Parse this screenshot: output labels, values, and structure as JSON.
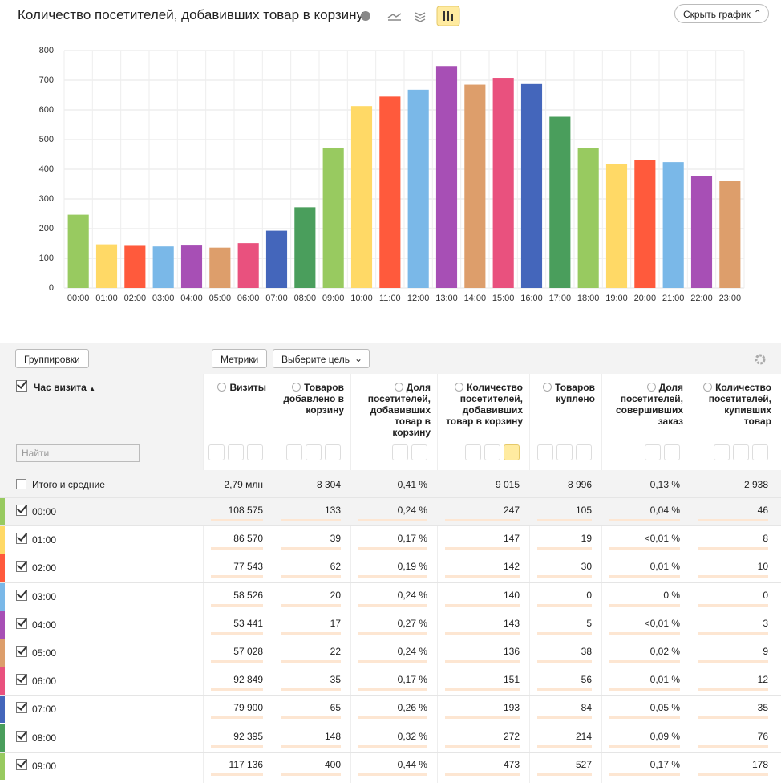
{
  "header": {
    "title": "Количество посетителей, добавивших товар в корзину",
    "hide_button": "Скрыть график"
  },
  "chart_data": {
    "type": "bar",
    "categories": [
      "00:00",
      "01:00",
      "02:00",
      "03:00",
      "04:00",
      "05:00",
      "06:00",
      "07:00",
      "08:00",
      "09:00",
      "10:00",
      "11:00",
      "12:00",
      "13:00",
      "14:00",
      "15:00",
      "16:00",
      "17:00",
      "18:00",
      "19:00",
      "20:00",
      "21:00",
      "22:00",
      "23:00"
    ],
    "values": [
      247,
      147,
      142,
      140,
      143,
      136,
      151,
      193,
      272,
      473,
      613,
      645,
      668,
      748,
      685,
      708,
      687,
      577,
      472,
      417,
      432,
      424,
      377,
      362
    ],
    "colors": [
      "#98ca60",
      "#ffd966",
      "#ff5a3c",
      "#7ab8e8",
      "#a74fb5",
      "#dd9e6b",
      "#e9517e",
      "#4466bb",
      "#4a9e5c",
      "#98ca60",
      "#ffd966",
      "#ff5a3c",
      "#7ab8e8",
      "#a74fb5",
      "#dd9e6b",
      "#e9517e",
      "#4466bb",
      "#4a9e5c",
      "#98ca60",
      "#ffd966",
      "#ff5a3c",
      "#7ab8e8",
      "#a74fb5",
      "#dd9e6b"
    ],
    "ylim": [
      0,
      800
    ],
    "yticks": [
      0,
      100,
      200,
      300,
      400,
      500,
      600,
      700,
      800
    ],
    "grid": true
  },
  "toolbar": {
    "groupings": "Группировки",
    "metrics": "Метрики",
    "goal": "Выберите цель",
    "search": "Найти"
  },
  "table": {
    "hour_header": "Час визита",
    "columns": [
      "Визиты",
      "Товаров добавлено в корзину",
      "Доля посетителей, добавивших товар в корзину",
      "Количество посетителей, добавивших товар в корзину",
      "Товаров куплено",
      "Доля посетителей, совершивших заказ",
      "Количество посетителей, купивших товар"
    ],
    "totals": {
      "label": "Итого и средние",
      "cells": [
        "2,79 млн",
        "8 304",
        "0,41 %",
        "9 015",
        "8 996",
        "0,13 %",
        "2 938"
      ]
    },
    "rows": [
      {
        "hour": "00:00",
        "cells": [
          "108 575",
          "133",
          "0,24 %",
          "247",
          "105",
          "0,04 %",
          "46"
        ]
      },
      {
        "hour": "01:00",
        "cells": [
          "86 570",
          "39",
          "0,17 %",
          "147",
          "19",
          "<0,01 %",
          "8"
        ]
      },
      {
        "hour": "02:00",
        "cells": [
          "77 543",
          "62",
          "0,19 %",
          "142",
          "30",
          "0,01 %",
          "10"
        ]
      },
      {
        "hour": "03:00",
        "cells": [
          "58 526",
          "20",
          "0,24 %",
          "140",
          "0",
          "0 %",
          "0"
        ]
      },
      {
        "hour": "04:00",
        "cells": [
          "53 441",
          "17",
          "0,27 %",
          "143",
          "5",
          "<0,01 %",
          "3"
        ]
      },
      {
        "hour": "05:00",
        "cells": [
          "57 028",
          "22",
          "0,24 %",
          "136",
          "38",
          "0,02 %",
          "9"
        ]
      },
      {
        "hour": "06:00",
        "cells": [
          "92 849",
          "35",
          "0,17 %",
          "151",
          "56",
          "0,01 %",
          "12"
        ]
      },
      {
        "hour": "07:00",
        "cells": [
          "79 900",
          "65",
          "0,26 %",
          "193",
          "84",
          "0,05 %",
          "35"
        ]
      },
      {
        "hour": "08:00",
        "cells": [
          "92 395",
          "148",
          "0,32 %",
          "272",
          "214",
          "0,09 %",
          "76"
        ]
      },
      {
        "hour": "09:00",
        "cells": [
          "117 136",
          "400",
          "0,44 %",
          "473",
          "527",
          "0,17 %",
          "178"
        ]
      }
    ]
  }
}
